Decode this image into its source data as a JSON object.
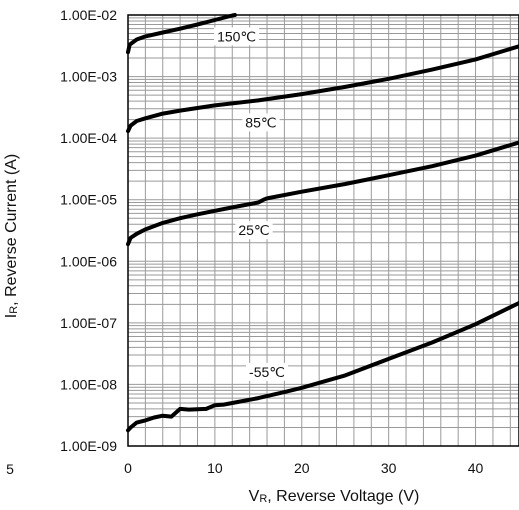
{
  "chart_data": {
    "type": "line",
    "title": "",
    "xlabel_main": "V",
    "xlabel_sub": "R",
    "xlabel_rest": ", Reverse Voltage (V)",
    "ylabel_main": "I",
    "ylabel_sub": "R",
    "ylabel_rest": ", Reverse Current (A)",
    "xlim": [
      0,
      45
    ],
    "ylim": [
      1e-09,
      0.01
    ],
    "yscale": "log",
    "grid": true,
    "x_ticks": [
      0,
      10,
      20,
      30,
      40
    ],
    "x_tick_labels": [
      "0",
      "10",
      "20",
      "30",
      "40"
    ],
    "y_ticks": [
      1e-09,
      1e-08,
      1e-07,
      1e-06,
      1e-05,
      0.0001,
      0.001,
      0.01
    ],
    "y_tick_labels": [
      "1.00E-09",
      "1.00E-08",
      "1.00E-07",
      "1.00E-06",
      "1.00E-05",
      "1.00E-04",
      "1.00E-03",
      "1.00E-02"
    ],
    "edge_fragment": "5",
    "series": [
      {
        "name": "150℃",
        "label_at": [
          12.5,
          0.0045
        ],
        "points": [
          [
            0,
            0.0025
          ],
          [
            0.2,
            0.0033
          ],
          [
            1,
            0.004
          ],
          [
            2,
            0.0045
          ],
          [
            4,
            0.0052
          ],
          [
            6,
            0.006
          ],
          [
            8,
            0.007
          ],
          [
            10,
            0.0083
          ],
          [
            12,
            0.0098
          ],
          [
            12.3,
            0.01
          ]
        ]
      },
      {
        "name": "85℃",
        "label_at": [
          15.3,
          0.00018
        ],
        "points": [
          [
            0,
            0.00013
          ],
          [
            0.3,
            0.00016
          ],
          [
            1,
            0.00019
          ],
          [
            2,
            0.00021
          ],
          [
            4,
            0.00025
          ],
          [
            6,
            0.00028
          ],
          [
            10,
            0.00034
          ],
          [
            15,
            0.00041
          ],
          [
            20,
            0.00052
          ],
          [
            25,
            0.00068
          ],
          [
            30,
            0.00092
          ],
          [
            35,
            0.0013
          ],
          [
            40,
            0.0019
          ],
          [
            45,
            0.0031
          ]
        ]
      },
      {
        "name": "25℃",
        "label_at": [
          14.5,
          3.2e-06
        ],
        "points": [
          [
            0,
            1.9e-06
          ],
          [
            0.3,
            2.4e-06
          ],
          [
            1,
            2.8e-06
          ],
          [
            2,
            3.3e-06
          ],
          [
            4,
            4.2e-06
          ],
          [
            6,
            5e-06
          ],
          [
            8,
            5.8e-06
          ],
          [
            10,
            6.6e-06
          ],
          [
            12,
            7.5e-06
          ],
          [
            14,
            8.5e-06
          ],
          [
            15,
            9e-06
          ],
          [
            15.6,
            1e-05
          ],
          [
            16,
            1.05e-05
          ],
          [
            20,
            1.35e-05
          ],
          [
            25,
            1.8e-05
          ],
          [
            30,
            2.5e-05
          ],
          [
            35,
            3.5e-05
          ],
          [
            40,
            5.2e-05
          ],
          [
            45,
            8.5e-05
          ]
        ]
      },
      {
        "name": "-55℃",
        "label_at": [
          16,
          1.6e-08
        ],
        "points": [
          [
            0,
            1.8e-09
          ],
          [
            0.3,
            2e-09
          ],
          [
            1,
            2.4e-09
          ],
          [
            2,
            2.6e-09
          ],
          [
            3,
            2.9e-09
          ],
          [
            4,
            3.1e-09
          ],
          [
            5,
            3e-09
          ],
          [
            6,
            4e-09
          ],
          [
            7,
            3.9e-09
          ],
          [
            9,
            4e-09
          ],
          [
            10,
            4.6e-09
          ],
          [
            11,
            4.7e-09
          ],
          [
            13,
            5.3e-09
          ],
          [
            15,
            6e-09
          ],
          [
            18,
            7.5e-09
          ],
          [
            20,
            8.8e-09
          ],
          [
            25,
            1.4e-08
          ],
          [
            30,
            2.6e-08
          ],
          [
            35,
            4.8e-08
          ],
          [
            40,
            9.5e-08
          ],
          [
            45,
            2.1e-07
          ]
        ]
      }
    ]
  }
}
